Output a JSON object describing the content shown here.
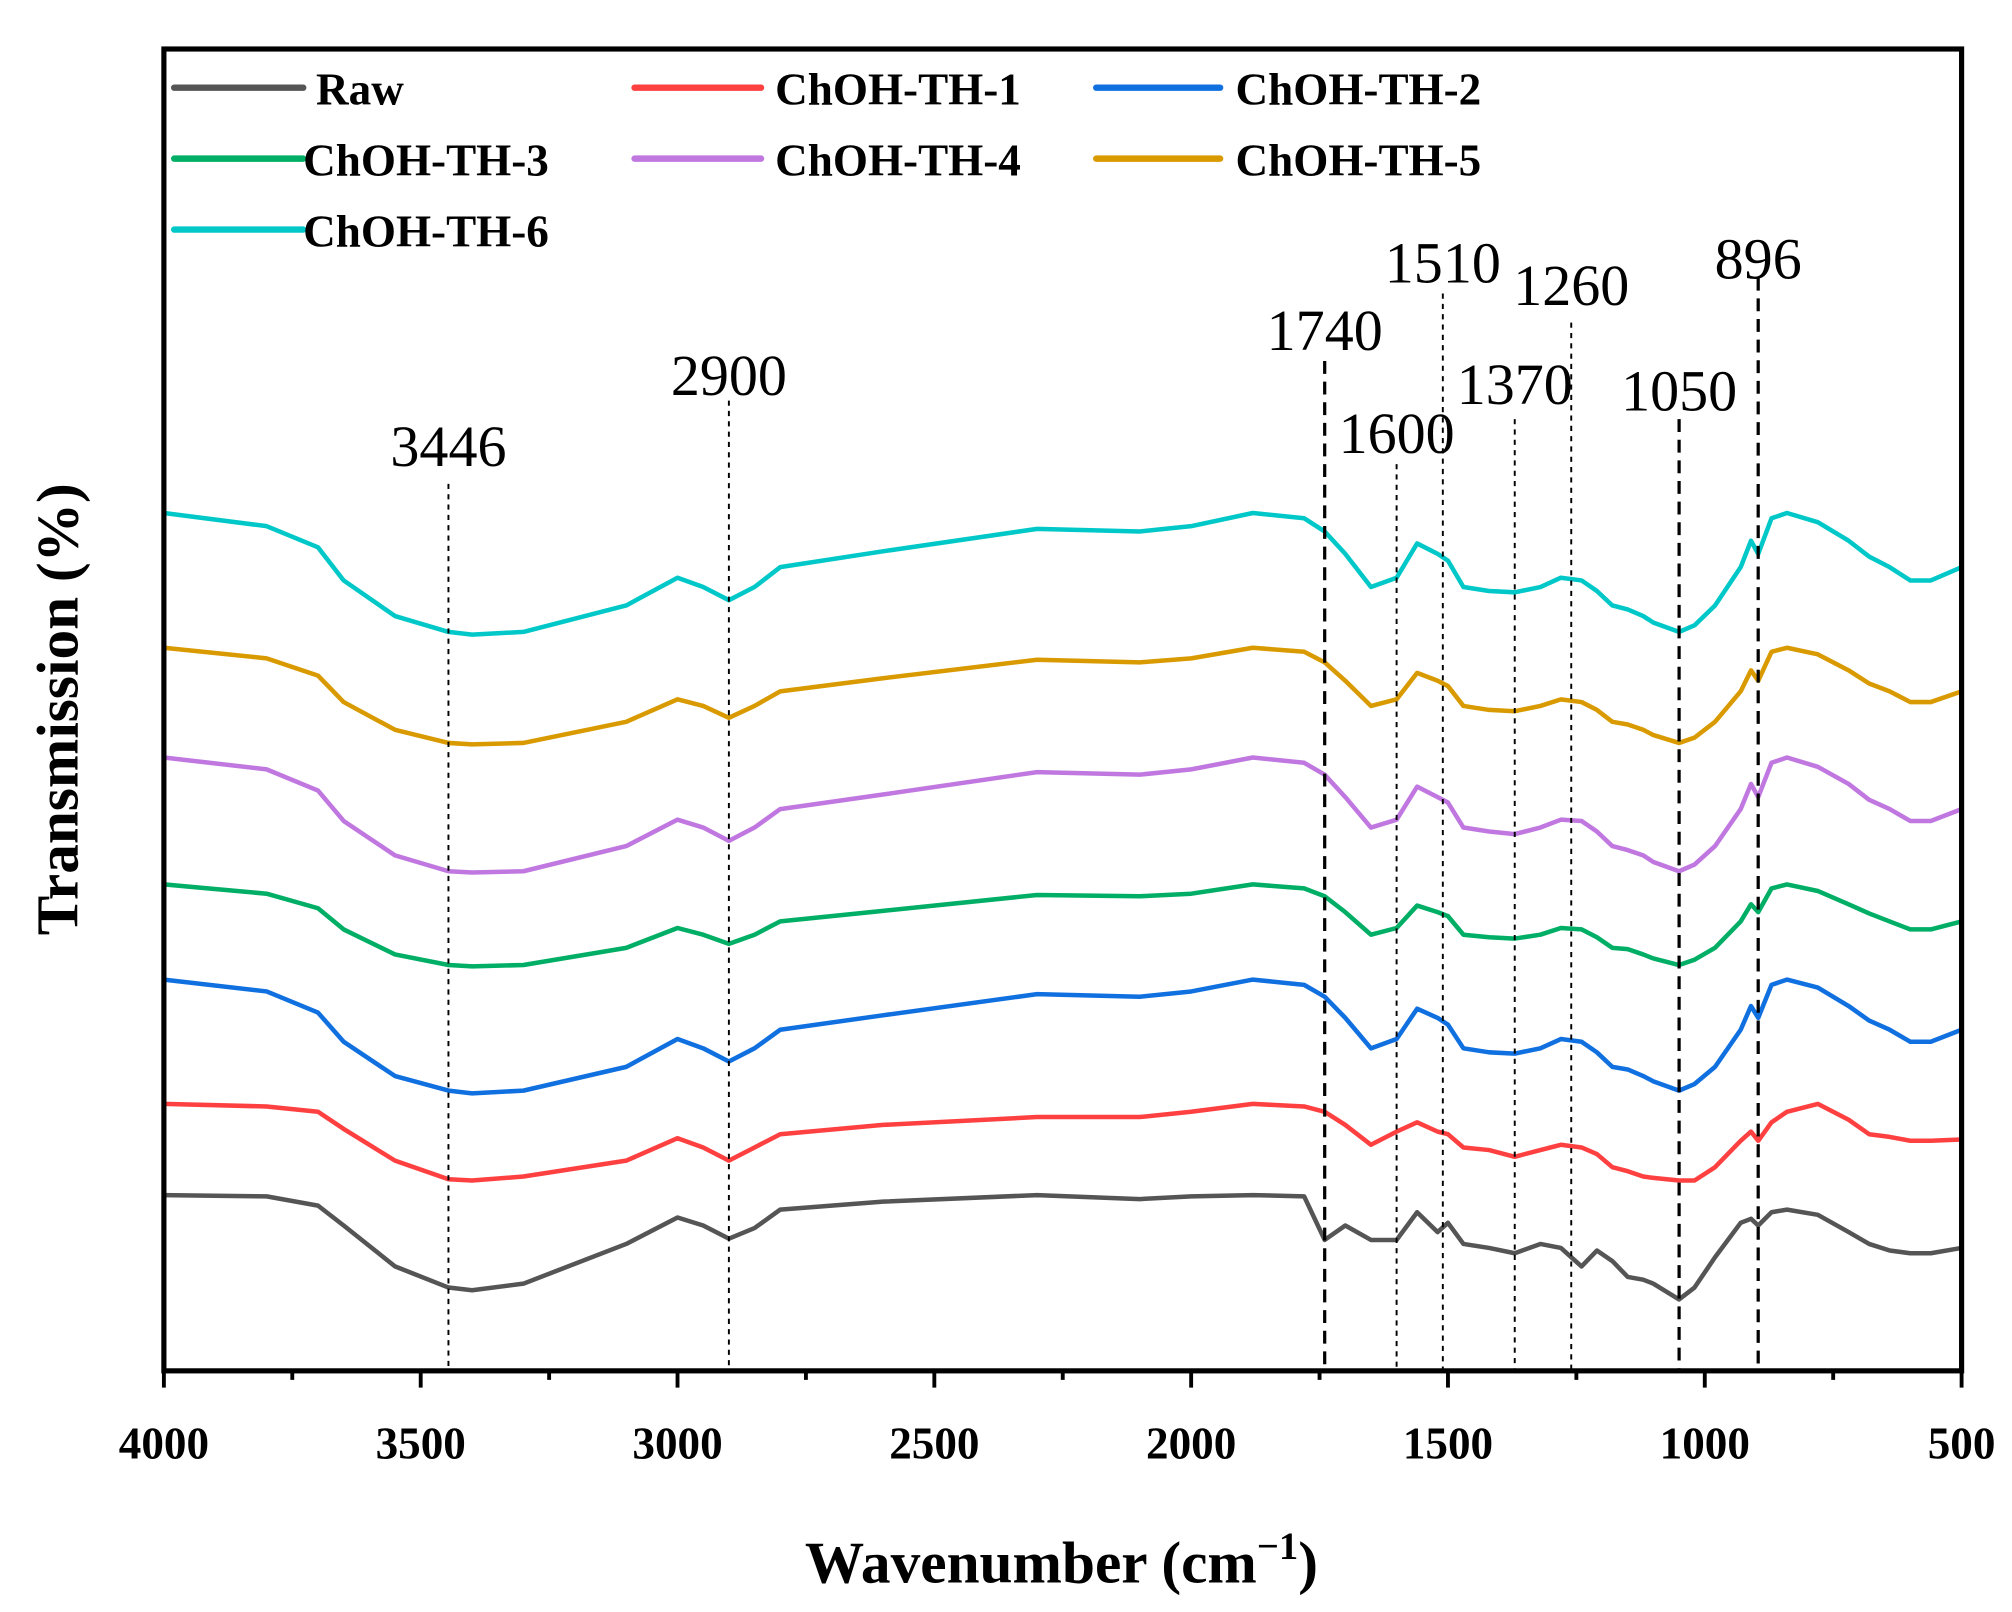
{
  "chart_data": {
    "type": "line",
    "xlabel": "Wavenumber (cm",
    "xlabel_sup": "−1",
    "xlabel_close": ")",
    "ylabel": "Transmission (%)",
    "xlim": [
      4000,
      500
    ],
    "ylim": [
      0,
      100
    ],
    "y_units": "arbitrary (offset spectra)",
    "grid": false,
    "legend_position": "top-left",
    "xticks": [
      4000,
      3500,
      3000,
      2500,
      2000,
      1500,
      1000,
      500
    ],
    "xtick_labels": [
      "4000",
      "3500",
      "3000",
      "2500",
      "2000",
      "1500",
      "1000",
      "500"
    ],
    "x": [
      4000,
      3800,
      3700,
      3650,
      3550,
      3446,
      3400,
      3300,
      3100,
      3000,
      2950,
      2900,
      2850,
      2800,
      2600,
      2300,
      2100,
      2000,
      1880,
      1780,
      1740,
      1700,
      1650,
      1600,
      1560,
      1520,
      1500,
      1470,
      1420,
      1370,
      1320,
      1280,
      1240,
      1210,
      1180,
      1150,
      1120,
      1100,
      1050,
      1020,
      980,
      930,
      910,
      896,
      870,
      840,
      780,
      720,
      680,
      640,
      600,
      560,
      500
    ],
    "series": [
      {
        "name": "Raw",
        "color": "#555555",
        "values": [
          13.3,
          13.2,
          12.5,
          11.0,
          7.9,
          6.3,
          6.1,
          6.6,
          9.6,
          11.6,
          11.0,
          10.0,
          10.8,
          12.2,
          12.8,
          13.3,
          13.0,
          13.2,
          13.3,
          13.2,
          9.9,
          11.0,
          9.9,
          9.9,
          12.0,
          10.5,
          11.2,
          9.6,
          9.3,
          8.9,
          9.6,
          9.3,
          7.9,
          9.1,
          8.3,
          7.1,
          6.9,
          6.6,
          5.4,
          6.3,
          8.6,
          11.2,
          11.5,
          11.0,
          12.0,
          12.2,
          11.8,
          10.5,
          9.6,
          9.1,
          8.9,
          8.9,
          9.3
        ]
      },
      {
        "name": "ChOH-TH-1",
        "color": "#ff4040",
        "values": [
          20.2,
          20.0,
          19.6,
          18.3,
          15.9,
          14.5,
          14.4,
          14.7,
          15.9,
          17.6,
          16.9,
          15.9,
          16.9,
          17.9,
          18.6,
          19.2,
          19.2,
          19.6,
          20.2,
          20.0,
          19.6,
          18.6,
          17.1,
          18.1,
          18.8,
          18.1,
          17.9,
          16.9,
          16.7,
          16.2,
          16.7,
          17.1,
          16.9,
          16.4,
          15.4,
          15.1,
          14.7,
          14.6,
          14.4,
          14.4,
          15.4,
          17.4,
          18.1,
          17.4,
          18.8,
          19.6,
          20.2,
          19.0,
          17.9,
          17.7,
          17.4,
          17.4,
          17.5
        ]
      },
      {
        "name": "ChOH-TH-2",
        "color": "#1070e0",
        "values": [
          29.6,
          28.7,
          27.1,
          24.9,
          22.3,
          21.2,
          21.0,
          21.2,
          23.0,
          25.1,
          24.4,
          23.4,
          24.4,
          25.8,
          26.9,
          28.5,
          28.3,
          28.7,
          29.6,
          29.2,
          28.3,
          26.7,
          24.4,
          25.1,
          27.4,
          26.7,
          26.2,
          24.4,
          24.1,
          24.0,
          24.4,
          25.1,
          24.9,
          24.1,
          23.0,
          22.8,
          22.3,
          21.9,
          21.2,
          21.7,
          23.0,
          25.8,
          27.6,
          26.7,
          29.2,
          29.6,
          29.0,
          27.6,
          26.5,
          25.8,
          24.9,
          24.9,
          25.8
        ]
      },
      {
        "name": "ChOH-TH-3",
        "color": "#00ae66",
        "values": [
          36.8,
          36.1,
          35.0,
          33.4,
          31.5,
          30.7,
          30.6,
          30.7,
          32.0,
          33.5,
          33.0,
          32.3,
          33.0,
          34.0,
          34.8,
          36.0,
          35.9,
          36.1,
          36.8,
          36.5,
          35.9,
          34.7,
          33.0,
          33.5,
          35.2,
          34.7,
          34.4,
          33.0,
          32.8,
          32.7,
          33.0,
          33.5,
          33.4,
          32.8,
          32.0,
          31.9,
          31.5,
          31.2,
          30.7,
          31.1,
          32.0,
          34.0,
          35.3,
          34.7,
          36.5,
          36.8,
          36.3,
          35.3,
          34.6,
          34.0,
          33.4,
          33.4,
          34.0
        ]
      },
      {
        "name": "ChOH-TH-4",
        "color": "#c078e0",
        "values": [
          46.4,
          45.5,
          43.9,
          41.6,
          39.0,
          37.8,
          37.7,
          37.8,
          39.7,
          41.7,
          41.1,
          40.1,
          41.1,
          42.5,
          43.6,
          45.3,
          45.1,
          45.5,
          46.4,
          46.0,
          45.1,
          43.4,
          41.1,
          41.7,
          44.2,
          43.4,
          43.0,
          41.1,
          40.8,
          40.6,
          41.1,
          41.7,
          41.6,
          40.8,
          39.7,
          39.4,
          39.0,
          38.5,
          37.8,
          38.3,
          39.7,
          42.5,
          44.4,
          43.4,
          46.0,
          46.4,
          45.7,
          44.4,
          43.2,
          42.5,
          41.6,
          41.6,
          42.5
        ]
      },
      {
        "name": "ChOH-TH-5",
        "color": "#d99a00",
        "values": [
          54.7,
          53.9,
          52.6,
          50.6,
          48.5,
          47.5,
          47.4,
          47.5,
          49.1,
          50.8,
          50.3,
          49.4,
          50.3,
          51.4,
          52.4,
          53.8,
          53.6,
          53.9,
          54.7,
          54.4,
          53.6,
          52.2,
          50.3,
          50.8,
          52.8,
          52.2,
          51.8,
          50.3,
          50.0,
          49.9,
          50.3,
          50.8,
          50.6,
          50.0,
          49.1,
          48.9,
          48.5,
          48.1,
          47.5,
          47.9,
          49.1,
          51.4,
          53.0,
          52.2,
          54.4,
          54.7,
          54.2,
          53.0,
          52.0,
          51.4,
          50.6,
          50.6,
          51.4
        ]
      },
      {
        "name": "ChOH-TH-6",
        "color": "#00c8c8",
        "values": [
          64.9,
          63.9,
          62.3,
          59.8,
          57.1,
          55.9,
          55.7,
          55.9,
          57.9,
          60.0,
          59.3,
          58.3,
          59.3,
          60.8,
          62.0,
          63.7,
          63.5,
          63.9,
          64.9,
          64.5,
          63.5,
          61.8,
          59.3,
          60.0,
          62.6,
          61.8,
          61.3,
          59.3,
          59.0,
          58.9,
          59.3,
          60.0,
          59.8,
          59.0,
          57.9,
          57.6,
          57.1,
          56.6,
          55.9,
          56.4,
          57.9,
          60.8,
          62.8,
          61.8,
          64.5,
          64.9,
          64.2,
          62.8,
          61.6,
          60.8,
          59.8,
          59.8,
          60.8
        ]
      }
    ],
    "annotations": [
      {
        "label": "3446",
        "x": 3446,
        "line_top": 67.1,
        "label_y": 70.0,
        "style": "dotted"
      },
      {
        "label": "2900",
        "x": 2900,
        "line_top": 73.4,
        "label_y": 75.4,
        "style": "dotted"
      },
      {
        "label": "1740",
        "x": 1740,
        "line_top": 76.4,
        "label_y": 78.8,
        "style": "dashed"
      },
      {
        "label": "1600",
        "x": 1600,
        "line_top": 68.6,
        "label_y": 71.0,
        "style": "dotted"
      },
      {
        "label": "1510",
        "x": 1510,
        "line_top": 81.5,
        "label_y": 83.9,
        "style": "dotted"
      },
      {
        "label": "1370",
        "x": 1370,
        "line_top": 72.0,
        "label_y": 74.7,
        "style": "dotted"
      },
      {
        "label": "1260",
        "x": 1260,
        "line_top": 79.3,
        "label_y": 82.2,
        "style": "dotted"
      },
      {
        "label": "1050",
        "x": 1050,
        "line_top": 72.0,
        "label_y": 74.2,
        "style": "dashed"
      },
      {
        "label": "896",
        "x": 896,
        "line_top": 82.7,
        "label_y": 84.2,
        "style": "dashed"
      }
    ]
  }
}
